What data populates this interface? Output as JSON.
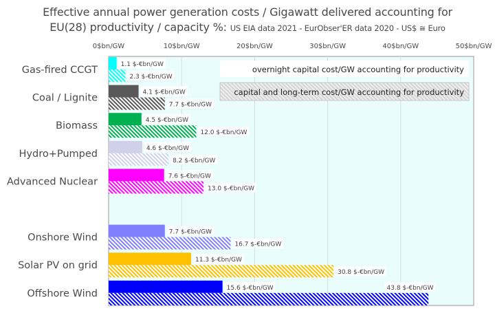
{
  "title": {
    "line1": "Effective annual power generation costs / Gigawatt delivered accounting for",
    "line2_main": "EU(28) productivity / capacity %: ",
    "line2_sub": "US EIA data 2021 - EurObser'ER data 2020 - US$ ≅ Euro"
  },
  "chart_data": {
    "type": "bar",
    "orientation": "horizontal",
    "title": "Effective annual power generation costs / Gigawatt delivered accounting for EU(28) productivity / capacity %: US EIA data 2021 - EurObser'ER data 2020 - US$ ≅ Euro",
    "xlabel": "",
    "ylabel": "",
    "xlim": [
      0,
      50
    ],
    "x_ticks": [
      0,
      10,
      20,
      30,
      40,
      50
    ],
    "x_tick_labels": [
      "0$bn/GW",
      "10$bn/GW",
      "20$bn/GW",
      "30$bn/GW",
      "40$bn/GW",
      "50$bn/GW"
    ],
    "grid": true,
    "x_axis_position": "top",
    "value_label_suffix": " $-€bn/GW",
    "categories": [
      "Gas-fired CCGT",
      "Coal / Lignite",
      "Biomass",
      "Hydro+Pumped",
      "Advanced Nuclear",
      "",
      "Onshore Wind",
      "Solar PV on grid",
      "Offshore Wind"
    ],
    "colors": [
      "#00ffff",
      "#595959",
      "#00b050",
      "#d0d0e8",
      "#ff00ff",
      null,
      "#7f7fff",
      "#ffc000",
      "#0000ff"
    ],
    "series": [
      {
        "name": "overnight capital cost/GW   accounting for productivity",
        "style": "solid",
        "values": [
          1.1,
          4.1,
          4.5,
          4.6,
          7.6,
          null,
          7.7,
          11.3,
          15.6
        ],
        "labels": [
          "1.1",
          "4.1",
          "4.5",
          "4.6",
          "7.6",
          null,
          "7.7",
          "11.3",
          "15.6"
        ]
      },
      {
        "name": "capital and long-term cost/GW   accounting for productivity",
        "style": "hatched",
        "values": [
          2.3,
          7.7,
          12.0,
          8.2,
          13.0,
          null,
          16.7,
          30.8,
          43.8
        ],
        "labels": [
          "2.3",
          "7.7",
          "12.0",
          "8.2",
          "13.0",
          null,
          "16.7",
          "30.8",
          "43.8"
        ]
      }
    ],
    "legend": {
      "placement": "top-right",
      "entries": [
        "overnight capital cost/GW   accounting for productivity",
        "capital and long-term cost/GW   accounting for productivity"
      ]
    },
    "colors_theme": {
      "plot_background": "#e9fdfd",
      "grid": "#d4dede",
      "border": "#b8b8b8"
    }
  }
}
